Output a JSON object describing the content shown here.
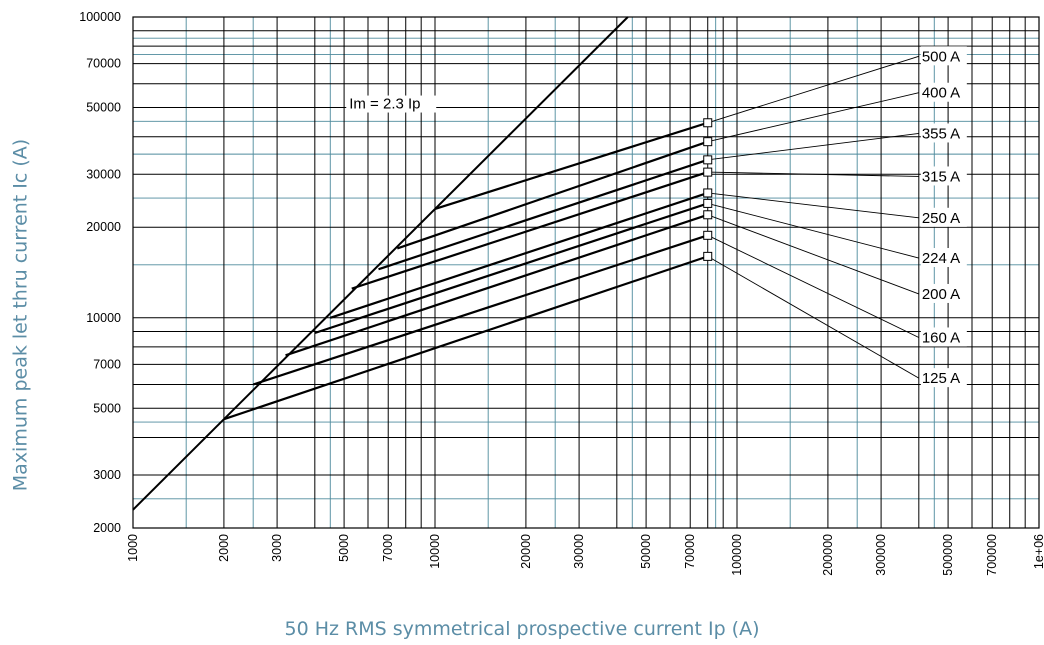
{
  "chart_data": {
    "type": "line",
    "x_scale": "log",
    "y_scale": "log",
    "xlim": [
      1000,
      1000000
    ],
    "ylim": [
      2000,
      100000
    ],
    "xlabel": "50 Hz RMS symmetrical prospective current Ip (A)",
    "ylabel": "Maximum peak let thru current Ic (A)",
    "x_tick_labels": [
      {
        "value": 1000,
        "label": "1000"
      },
      {
        "value": 2000,
        "label": "2000"
      },
      {
        "value": 3000,
        "label": "3000"
      },
      {
        "value": 5000,
        "label": "5000"
      },
      {
        "value": 7000,
        "label": "7000"
      },
      {
        "value": 10000,
        "label": "10000"
      },
      {
        "value": 20000,
        "label": "20000"
      },
      {
        "value": 30000,
        "label": "30000"
      },
      {
        "value": 50000,
        "label": "50000"
      },
      {
        "value": 70000,
        "label": "70000"
      },
      {
        "value": 100000,
        "label": "100000"
      },
      {
        "value": 200000,
        "label": "200000"
      },
      {
        "value": 300000,
        "label": "300000"
      },
      {
        "value": 500000,
        "label": "500000"
      },
      {
        "value": 700000,
        "label": "700000"
      },
      {
        "value": 1000000,
        "label": "1e+06"
      }
    ],
    "y_tick_labels": [
      {
        "value": 2000,
        "label": "2000"
      },
      {
        "value": 3000,
        "label": "3000"
      },
      {
        "value": 5000,
        "label": "5000"
      },
      {
        "value": 7000,
        "label": "7000"
      },
      {
        "value": 10000,
        "label": "10000"
      },
      {
        "value": 20000,
        "label": "20000"
      },
      {
        "value": 30000,
        "label": "30000"
      },
      {
        "value": 50000,
        "label": "50000"
      },
      {
        "value": 70000,
        "label": "70000"
      },
      {
        "value": 100000,
        "label": "100000"
      }
    ],
    "x_grid_black": [
      1000,
      2000,
      3000,
      4000,
      5000,
      6000,
      7000,
      8000,
      9000,
      10000,
      20000,
      30000,
      40000,
      50000,
      60000,
      70000,
      80000,
      90000,
      100000,
      200000,
      300000,
      400000,
      500000,
      600000,
      700000,
      800000,
      900000,
      1000000
    ],
    "x_grid_teal": [
      1500,
      2500,
      4500,
      15000,
      25000,
      45000,
      85000,
      150000,
      250000,
      450000
    ],
    "y_grid_black": [
      2000,
      3000,
      4000,
      5000,
      6000,
      7000,
      8000,
      9000,
      10000,
      20000,
      30000,
      40000,
      50000,
      60000,
      70000,
      80000,
      90000,
      100000
    ],
    "y_grid_teal": [
      2500,
      4500,
      15000,
      25000,
      35000,
      45000,
      75000,
      85000
    ],
    "reference_line": {
      "label": "Im = 2.3 Ip",
      "points": [
        [
          1000,
          2300
        ],
        [
          43500,
          100000
        ]
      ],
      "label_at": [
        5200,
        50000
      ]
    },
    "marker_x": 80000,
    "series": [
      {
        "name": "125 A",
        "points": [
          [
            2000,
            4600
          ],
          [
            80000,
            16000
          ]
        ],
        "label_at": [
          400000,
          6300
        ]
      },
      {
        "name": "160 A",
        "points": [
          [
            2500,
            6000
          ],
          [
            80000,
            18800
          ]
        ],
        "label_at": [
          400000,
          8600
        ]
      },
      {
        "name": "200 A",
        "points": [
          [
            3200,
            7500
          ],
          [
            80000,
            22000
          ]
        ],
        "label_at": [
          400000,
          12000
        ]
      },
      {
        "name": "224 A",
        "points": [
          [
            4000,
            8900
          ],
          [
            80000,
            24000
          ]
        ],
        "label_at": [
          400000,
          15800
        ]
      },
      {
        "name": "250 A",
        "points": [
          [
            4500,
            10000
          ],
          [
            80000,
            26000
          ]
        ],
        "label_at": [
          400000,
          21500
        ]
      },
      {
        "name": "315 A",
        "points": [
          [
            5300,
            12500
          ],
          [
            80000,
            30500
          ]
        ],
        "label_at": [
          400000,
          29500
        ]
      },
      {
        "name": "355 A",
        "points": [
          [
            6500,
            14500
          ],
          [
            80000,
            33500
          ]
        ],
        "label_at": [
          400000,
          41000
        ]
      },
      {
        "name": "400 A",
        "points": [
          [
            7500,
            17000
          ],
          [
            80000,
            38500
          ]
        ],
        "label_at": [
          400000,
          56000
        ]
      },
      {
        "name": "500 A",
        "points": [
          [
            10000,
            23000
          ],
          [
            80000,
            44500
          ]
        ],
        "label_at": [
          400000,
          74000
        ]
      }
    ]
  }
}
